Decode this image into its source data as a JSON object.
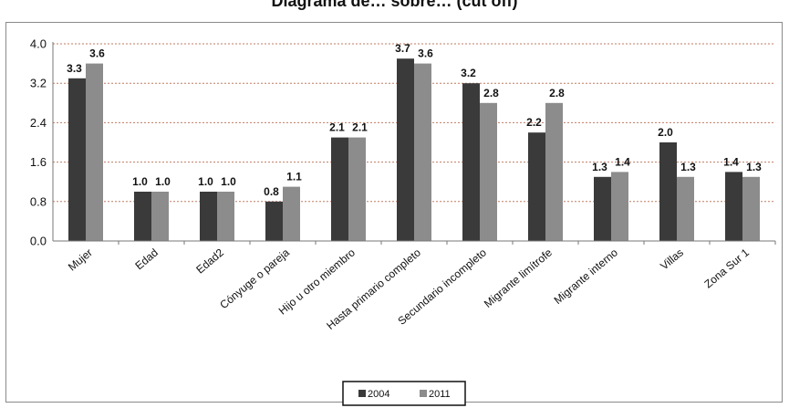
{
  "title": "Diagrama de… sobre… (cut off)",
  "chart_data": {
    "type": "bar",
    "categories": [
      "Mujer",
      "Edad",
      "Edad2",
      "Cónyuge o pareja",
      "Hijo u otro miembro",
      "Hasta primario completo",
      "Secundario incompleto",
      "Migrante limítrofe",
      "Migrante interno",
      "Villas",
      "Zona Sur 1"
    ],
    "series": [
      {
        "name": "2004",
        "color": "#3a3a3a",
        "values": [
          3.3,
          1.0,
          1.0,
          0.8,
          2.1,
          3.7,
          3.2,
          2.2,
          1.3,
          2.0,
          1.4
        ],
        "labels": [
          "3.3",
          "1.0",
          "1.0",
          "0.8",
          "2.1",
          "3.7",
          "3.2",
          "2.2",
          "1.3",
          "2.0",
          "1.4"
        ]
      },
      {
        "name": "2011",
        "color": "#8c8c8c",
        "values": [
          3.6,
          1.0,
          1.0,
          1.1,
          2.1,
          3.6,
          2.8,
          2.8,
          1.4,
          1.3,
          1.3
        ],
        "labels": [
          "3.6",
          "1.0",
          "1.0",
          "1.1",
          "2.1",
          "3.6",
          "2.8",
          "2.8",
          "1.4",
          "1.3",
          "1.3"
        ]
      }
    ],
    "yticks": [
      "0.0",
      "0.8",
      "1.6",
      "2.4",
      "3.2",
      "4.0"
    ],
    "ylim": [
      0,
      4.0
    ],
    "grid": "horizontal dotted",
    "legend_position": "bottom"
  }
}
